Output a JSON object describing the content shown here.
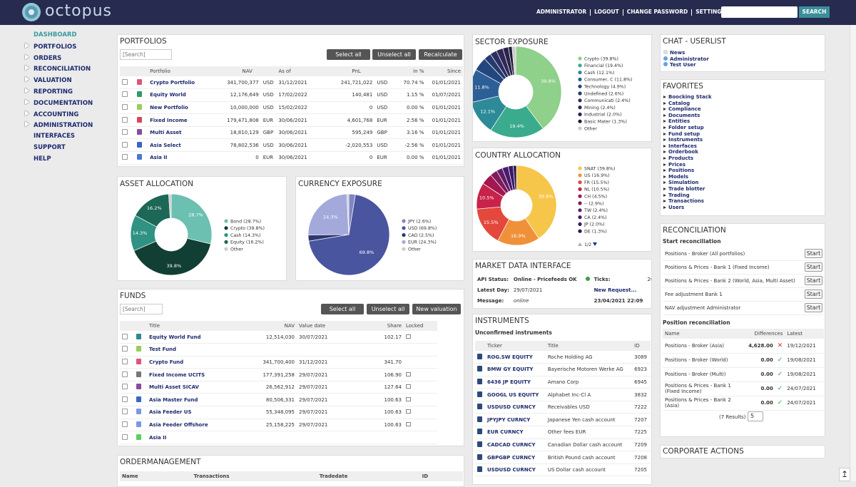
{
  "header": {
    "logo": "octopus",
    "nav": [
      "ADMINISTRATOR",
      "LOGOUT",
      "CHANGE PASSWORD",
      "SETTINGS"
    ],
    "search_button": "SEARCH"
  },
  "sidebar": {
    "items": [
      {
        "label": "DASHBOARD",
        "expandable": false,
        "active": true
      },
      {
        "label": "PORTFOLIOS",
        "expandable": true,
        "active": false
      },
      {
        "label": "ORDERS",
        "expandable": true,
        "active": false
      },
      {
        "label": "RECONCILIATION",
        "expandable": true,
        "active": false
      },
      {
        "label": "VALUATION",
        "expandable": true,
        "active": false
      },
      {
        "label": "REPORTING",
        "expandable": true,
        "active": false
      },
      {
        "label": "DOCUMENTATION",
        "expandable": true,
        "active": false
      },
      {
        "label": "ACCOUNTING",
        "expandable": true,
        "active": false
      },
      {
        "label": "ADMINISTRATION",
        "expandable": true,
        "active": false
      },
      {
        "label": "INTERFACES",
        "expandable": false,
        "active": false
      },
      {
        "label": "SUPPORT",
        "expandable": false,
        "active": false
      },
      {
        "label": "HELP",
        "expandable": false,
        "active": false
      }
    ]
  },
  "portfolios": {
    "title": "PORTFOLIOS",
    "search": "[Search]",
    "buttons": [
      "Select all",
      "Unselect all",
      "Recalculate"
    ],
    "columns": [
      "Portfolio",
      "NAV",
      "As of",
      "PnL",
      "in %",
      "Since"
    ],
    "rows": [
      {
        "color": "#e0557a",
        "cells": [
          "Crypto Portfolio",
          "341,700,377",
          "USD",
          "31/12/2021",
          "241,721,022",
          "USD",
          "70.74 %",
          "01/01/2021"
        ]
      },
      {
        "color": "#2f9a6a",
        "cells": [
          "Equity World",
          "12,176,649",
          "USD",
          "17/02/2022",
          "140,481",
          "USD",
          "1.15 %",
          "01/07/2021"
        ]
      },
      {
        "color": "#9ccc5a",
        "cells": [
          "New Portfolio",
          "10,000,000",
          "USD",
          "15/02/2022",
          "0",
          "USD",
          "0.00 %",
          "01/01/2021"
        ]
      },
      {
        "color": "#d9455a",
        "cells": [
          "Fixed Income",
          "179,471,808",
          "EUR",
          "30/06/2021",
          "4,601,768",
          "EUR",
          "2.56 %",
          "01/01/2021"
        ]
      },
      {
        "color": "#8a4aa0",
        "cells": [
          "Multi Asset",
          "18,810,129",
          "GBP",
          "30/06/2021",
          "595,249",
          "GBP",
          "3.16 %",
          "01/01/2021"
        ]
      },
      {
        "color": "#3a66c0",
        "cells": [
          "Asia Select",
          "78,802,536",
          "USD",
          "30/06/2021",
          "-2,020,553",
          "USD",
          "-2.56 %",
          "01/01/2021"
        ]
      },
      {
        "color": "#4a78d0",
        "cells": [
          "Asia II",
          "0",
          "EUR",
          "30/06/2021",
          "0",
          "EUR",
          "0.00 %",
          "01/01/2021"
        ]
      }
    ]
  },
  "funds": {
    "title": "FUNDS",
    "search": "[Search]",
    "buttons": [
      "Select all",
      "Unselect all",
      "New valuation"
    ],
    "columns": [
      "Title",
      "NAV",
      "Value date",
      "Share",
      "Locked"
    ],
    "rows": [
      {
        "color": "#2f8a8a",
        "locked": true,
        "cells": [
          "Equity World Fund",
          "12,514,030",
          "30/07/2021",
          "102.17"
        ]
      },
      {
        "color": "#9ccc5a",
        "locked": false,
        "cells": [
          "Test Fund",
          null,
          null,
          null
        ]
      },
      {
        "color": "#e0557a",
        "locked": false,
        "cells": [
          "Crypto Fund",
          "341,700,400",
          "31/12/2021",
          "341.70"
        ]
      },
      {
        "color": "#777777",
        "locked": true,
        "cells": [
          "Fixed Income UCITS",
          "177,391,258",
          "29/07/2021",
          "106.90"
        ]
      },
      {
        "color": "#8a4aa0",
        "locked": true,
        "cells": [
          "Multi Asset SICAV",
          "26,562,912",
          "29/07/2021",
          "127.64"
        ]
      },
      {
        "color": "#3a66c0",
        "locked": true,
        "cells": [
          "Asia Master Fund",
          "80,506,331",
          "29/07/2021",
          "100.63"
        ]
      },
      {
        "color": "#7a9ae0",
        "locked": true,
        "cells": [
          "Asia Feeder US",
          "55,348,095",
          "29/07/2021",
          "100.63"
        ]
      },
      {
        "color": "#7a9ae0",
        "locked": true,
        "cells": [
          "Asia Feeder Offshore",
          "25,158,225",
          "29/07/2021",
          "100.63"
        ]
      },
      {
        "color": "#5ad05a",
        "locked": false,
        "cells": [
          "Asia II",
          null,
          null,
          null
        ]
      }
    ]
  },
  "ordermanagement": {
    "title": "ORDERMANAGEMENT",
    "columns": [
      "Name",
      "Transactions",
      "Tradedate",
      "ID"
    ]
  },
  "market_data": {
    "title": "MARKET DATA INTERFACE",
    "rows": [
      [
        "API Status:",
        "Online - Pricefeeds OK",
        "Ticks:",
        "2619"
      ],
      [
        "Latest Day:",
        "29/07/2021",
        "New Request..."
      ],
      [
        "Message:",
        "online",
        "23/04/2021 22:09"
      ]
    ]
  },
  "instruments": {
    "title": "INSTRUMENTS",
    "subtitle": "Unconfirmed instruments",
    "columns": [
      "Ticker",
      "Title",
      "ID"
    ],
    "rows": [
      [
        "ROG.SW EQUITY",
        "Roche Holding AG",
        "3089"
      ],
      [
        "BMW GY EQUITY",
        "Bayerische Motoren Werke AG",
        "6923"
      ],
      [
        "6436 JP EQUITY",
        "Amano Corp",
        "6945"
      ],
      [
        "GOOGL US EQUITY",
        "Alphabet Inc-Cl A",
        "3832"
      ],
      [
        "USDUSD CURNCY",
        "Receivables USD",
        "7222"
      ],
      [
        "JPYJPY CURNCY",
        "Japanese Yen cash account",
        "7207"
      ],
      [
        "EUR CURNCY",
        "Other fees EUR",
        "7225"
      ],
      [
        "CADCAD CURNCY",
        "Canadian Dollar cash account",
        "7209"
      ],
      [
        "GBPGBP CURNCY",
        "British Pound cash account",
        "7208"
      ],
      [
        "USDUSD CURNCY",
        "US Dollar cash account",
        "7205"
      ]
    ]
  },
  "chat": {
    "title": "CHAT - USERLIST",
    "items": [
      "News",
      "Administrator",
      "Test User"
    ]
  },
  "favorites": {
    "title": "FAVORITES",
    "items": [
      "Boocking Stack",
      "Catalog",
      "Compliance",
      "Documents",
      "Entities",
      "Folder setup",
      "Fund setup",
      "Instruments",
      "Interfaces",
      "Orderbook",
      "Products",
      "Prices",
      "Positions",
      "Models",
      "Simulation",
      "Trade blotter",
      "Trading",
      "Transactions",
      "Users"
    ]
  },
  "reconciliation": {
    "title": "RECONCILIATION",
    "start_heading": "Start reconciliation",
    "start_button": "Start",
    "start_items": [
      "Positions - Broker (All portfolios)",
      "Positions & Prices - Bank 1 (Fixed Income)",
      "Positions & Prices - Bank 2 (World, Asia, Multi Asset)",
      "Fee adjustment Bank 1",
      "NAV adjustment Administrator"
    ],
    "position_heading": "Position reconciliation",
    "columns": [
      "Name",
      "Differences",
      "Latest"
    ],
    "rows": [
      {
        "ok": false,
        "cells": [
          "Positions - Broker (Asia)",
          "4,628.00",
          "19/12/2021"
        ]
      },
      {
        "ok": true,
        "cells": [
          "Positions - Broker (World)",
          "0.00",
          "19/08/2021"
        ]
      },
      {
        "ok": true,
        "cells": [
          "Positions - Broker (Multi)",
          "0.00",
          "19/08/2021"
        ]
      },
      {
        "ok": true,
        "cells": [
          "Positions & Prices - Bank 1 (Fixed Income)",
          "0.00",
          "24/07/2021"
        ]
      },
      {
        "ok": true,
        "cells": [
          "Positions & Prices - Bank 2 (Asia)",
          "0.00",
          "24/07/2021"
        ]
      }
    ],
    "results": "(7 Results)",
    "page_size": "5"
  },
  "corporate_actions": {
    "title": "CORPORATE ACTIONS"
  },
  "chart_data": [
    {
      "type": "pie",
      "title": "SECTOR EXPOSURE",
      "donut": true,
      "categories": [
        "Crypto (39.8%)",
        "Financial (19.4%)",
        "Cash (12.1%)",
        "Consumer, C (11.8%)",
        "Technology (4.9%)",
        "Undefined (2.6%)",
        "Communicati (2.4%)",
        "Mining (2.4%)",
        "Industrial (2.0%)",
        "Basic Mater (1.3%)",
        "Other"
      ],
      "values": [
        39.8,
        19.4,
        12.1,
        11.8,
        4.9,
        2.6,
        2.4,
        2.4,
        2.0,
        1.3,
        1.3
      ],
      "value_labels": [
        "39.8%",
        "19.4%",
        "12.1%",
        "11.8%",
        null,
        null,
        null,
        null,
        null,
        null,
        null
      ],
      "colors": [
        "#8fd08a",
        "#3aab8c",
        "#2d8a98",
        "#2c5f96",
        "#24467e",
        "#263a6e",
        "#2a2e62",
        "#302858",
        "#2a2248",
        "#1e1c3a",
        "#cccccc"
      ]
    },
    {
      "type": "pie",
      "title": "COUNTRY ALLOCATION",
      "donut": true,
      "pager": "1/2",
      "categories": [
        "SNAT (39.8%)",
        "US (16.9%)",
        "FR (15.5%)",
        "NL (10.5%)",
        "CH (4.5%)",
        "-- (2.9%)",
        "TW (2.4%)",
        "CA (2.4%)",
        "JP (2.0%)",
        "DE (1.3%)"
      ],
      "values": [
        39.8,
        16.9,
        15.5,
        10.5,
        4.5,
        2.9,
        2.4,
        2.4,
        2.0,
        1.3
      ],
      "value_labels": [
        "39.8%",
        "16.9%",
        "15.5%",
        "10.5%",
        null,
        null,
        null,
        null,
        null,
        null
      ],
      "colors": [
        "#f6c64a",
        "#f0913a",
        "#e4483c",
        "#c8224a",
        "#a3164f",
        "#801a5c",
        "#621c68",
        "#4c1a6c",
        "#3b1a62",
        "#2b1650"
      ]
    },
    {
      "type": "pie",
      "title": "ASSET ALLOCATION",
      "donut": true,
      "categories": [
        "Bond (28.7%)",
        "Crypto (39.8%)",
        "Cash (14.3%)",
        "Equity (16.2%)",
        "Other"
      ],
      "values": [
        28.7,
        39.8,
        14.3,
        16.2,
        1.0
      ],
      "value_labels": [
        "28.7%",
        "39.8%",
        "14.3%",
        "16.2%",
        null
      ],
      "colors": [
        "#6cc0b2",
        "#123f33",
        "#2f9282",
        "#1d6756",
        "#cccccc"
      ]
    },
    {
      "type": "pie",
      "title": "CURRENCY EXPOSURE",
      "donut": false,
      "categories": [
        "JPY (2.6%)",
        "USD (69.8%)",
        "CAD (2.5%)",
        "EUR (24.3%)",
        "Other"
      ],
      "values": [
        2.6,
        69.8,
        2.5,
        24.3,
        0.8
      ],
      "value_labels": [
        null,
        "69.8%",
        null,
        "24.3%",
        null
      ],
      "colors": [
        "#7f86c4",
        "#4a559f",
        "#2e3770",
        "#a4a9db",
        "#cccccc"
      ]
    }
  ]
}
